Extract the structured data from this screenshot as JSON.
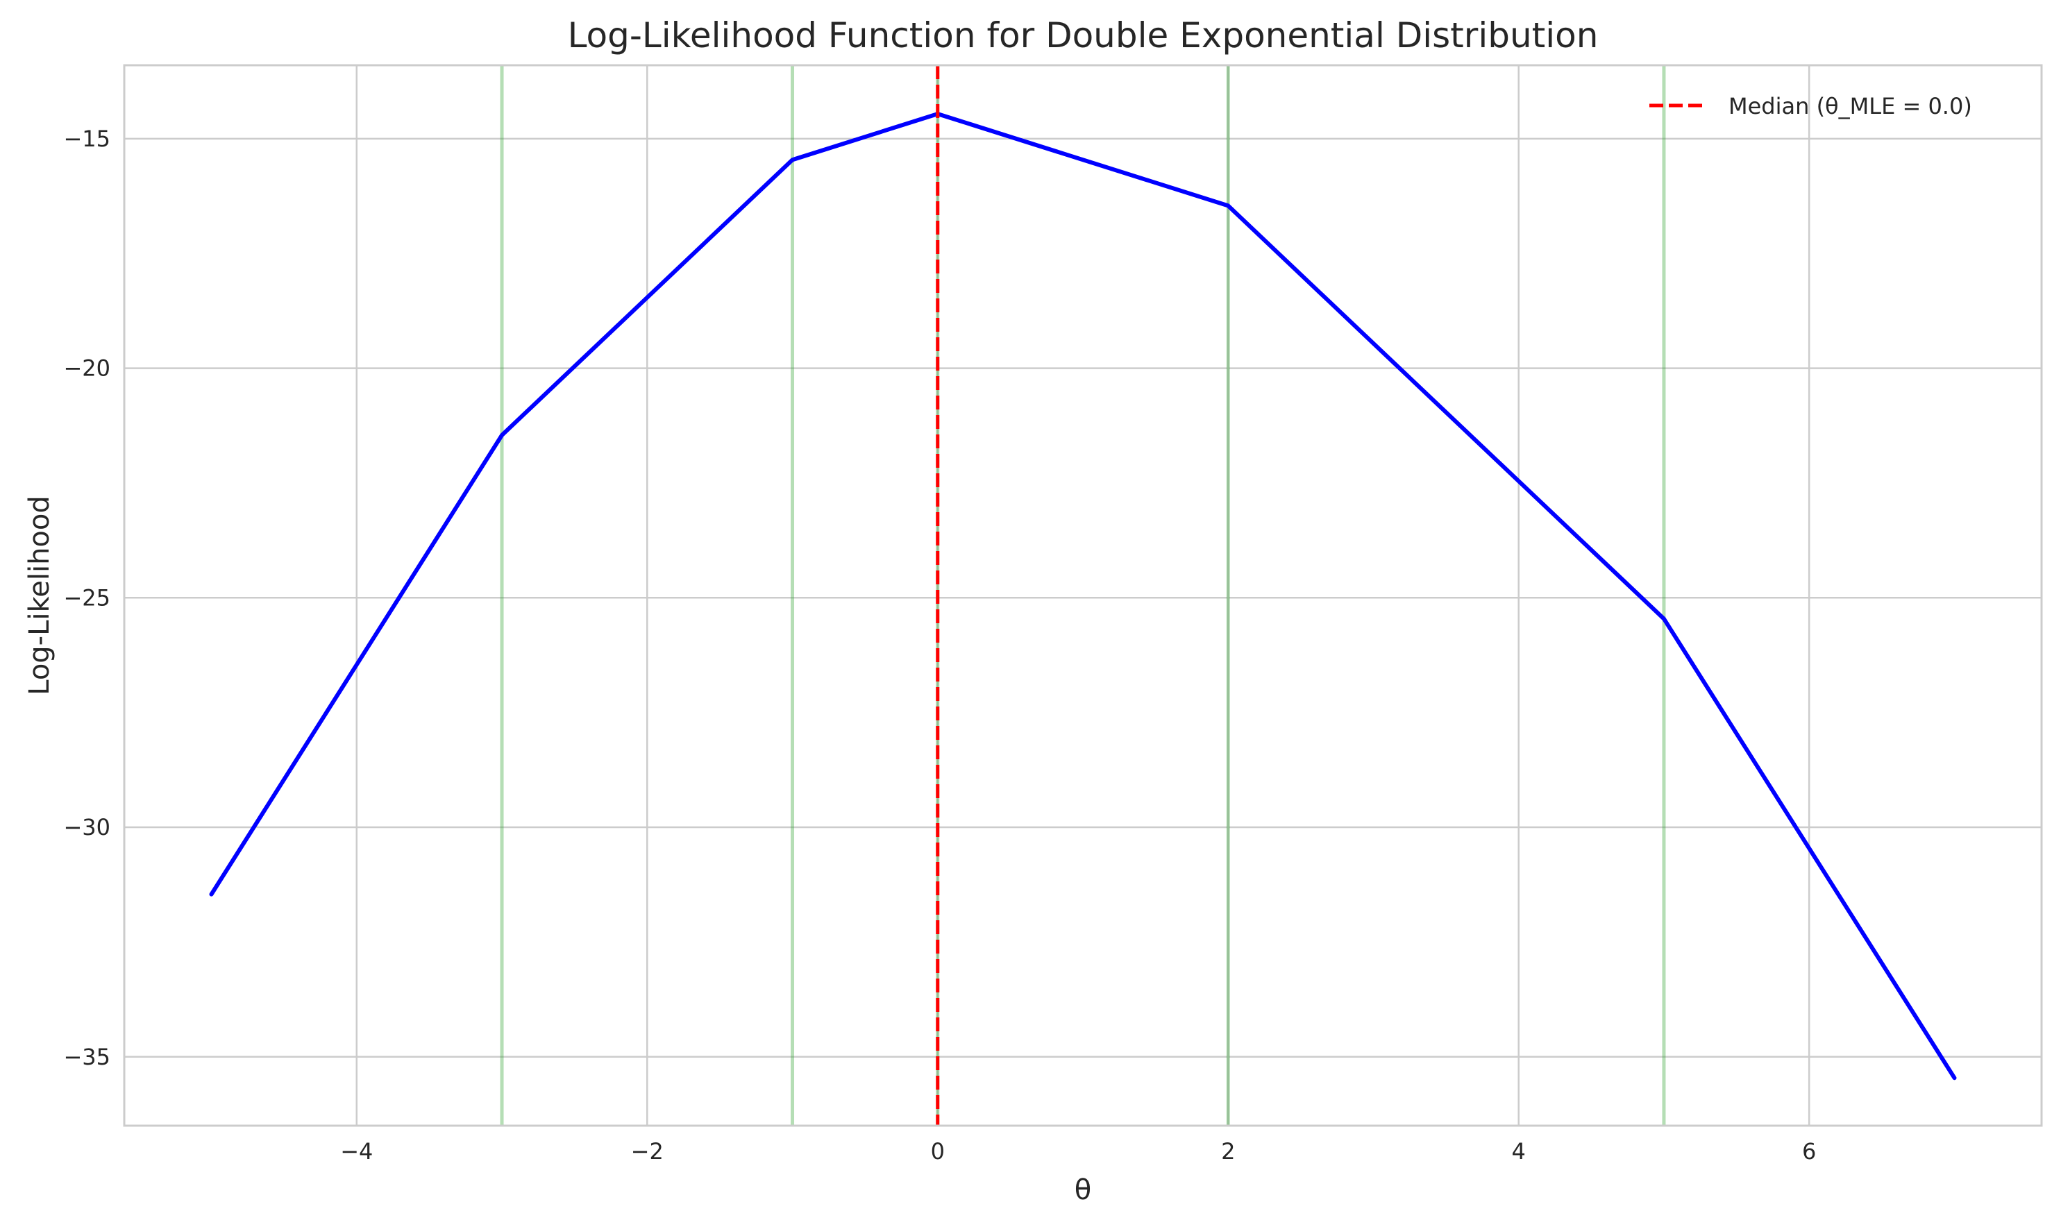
{
  "chart_data": {
    "type": "line",
    "title": "Log-Likelihood Function for Double Exponential Distribution",
    "xlabel": "θ",
    "ylabel": "Log-Likelihood",
    "xlim": [
      -5.6,
      7.6
    ],
    "ylim": [
      -36.5,
      -13.4
    ],
    "xticks": [
      -4,
      -2,
      0,
      2,
      4,
      6
    ],
    "xtick_labels": [
      "−4",
      "−2",
      "0",
      "2",
      "4",
      "6"
    ],
    "yticks": [
      -15,
      -20,
      -25,
      -30,
      -35
    ],
    "ytick_labels": [
      "−15",
      "−20",
      "−25",
      "−30",
      "−35"
    ],
    "grid": true,
    "legend_position": "top-right",
    "series": [
      {
        "kind": "line",
        "color": "#0000ff",
        "x": [
          -5,
          -3,
          -1,
          0,
          2,
          5,
          7
        ],
        "y": [
          -31.46,
          -21.46,
          -15.46,
          -14.46,
          -16.46,
          -25.46,
          -35.46
        ]
      }
    ],
    "vertical_lines": [
      {
        "x": -3,
        "color": "#2ca02c",
        "style": "solid",
        "opacity": 0.35
      },
      {
        "x": -1,
        "color": "#2ca02c",
        "style": "solid",
        "opacity": 0.35
      },
      {
        "x": 0,
        "color": "#2ca02c",
        "style": "solid",
        "opacity": 0.35
      },
      {
        "x": 2,
        "color": "#2ca02c",
        "style": "solid",
        "opacity": 0.35
      },
      {
        "x": 5,
        "color": "#2ca02c",
        "style": "solid",
        "opacity": 0.35
      },
      {
        "x": 0,
        "color": "#ff0000",
        "style": "dashed",
        "opacity": 1,
        "legend": "Median (θ_MLE = 0.0)"
      }
    ],
    "colors": {
      "curve": "#0000ff",
      "median": "#ff0000",
      "data_points": "#2ca02c",
      "grid": "#cccccc",
      "frame": "#cccccc"
    }
  }
}
